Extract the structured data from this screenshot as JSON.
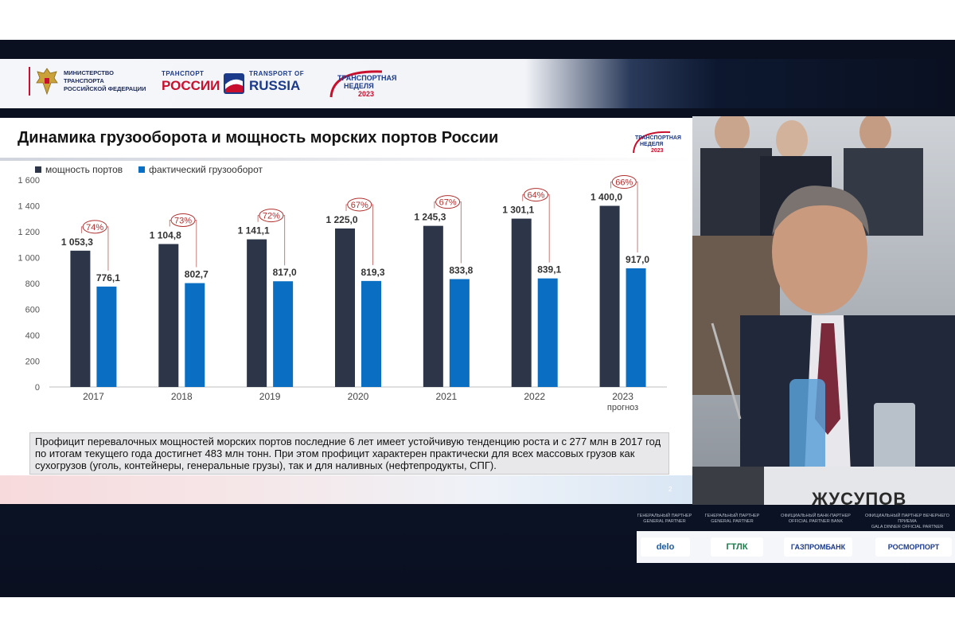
{
  "header": {
    "ministry_line1": "МИНИСТЕРСТВО ТРАНСПОРТА",
    "ministry_line2": "РОССИЙСКОЙ ФЕДЕРАЦИИ",
    "transport_top_ru": "ТРАНСПОРТ",
    "transport_big_ru": "РОССИИ",
    "transport_top_en": "TRANSPORT OF",
    "transport_big_en": "RUSSIA",
    "week_line1": "ТРАНСПОРТНАЯ",
    "week_line2": "НЕДЕЛЯ",
    "week_year": "2023"
  },
  "slide": {
    "title": "Динамика грузооборота и мощность морских портов России",
    "note": "Профицит перевалочных мощностей морских портов последние 6 лет имеет устойчивую тенденцию роста и с 277 млн в 2017 год по итогам текущего года достигнет 483 млн тонн. При этом профицит характерен практически для всех массовых грузов как сухогрузов (уголь, контейнеры, генеральные грузы), так и для наливных (нефтепродукты, СПГ).",
    "page_number": "2"
  },
  "chart_data": {
    "type": "bar",
    "categories": [
      "2017",
      "2018",
      "2019",
      "2020",
      "2021",
      "2022",
      "2023"
    ],
    "category_sublabels": [
      "",
      "",
      "",
      "",
      "",
      "",
      "прогноз"
    ],
    "series": [
      {
        "name": "мощность портов",
        "color": "#2d3648",
        "values": [
          1053.3,
          1104.8,
          1141.1,
          1225.0,
          1245.3,
          1301.1,
          1400.0
        ],
        "labels": [
          "1 053,3",
          "1 104,8",
          "1 141,1",
          "1 225,0",
          "1 245,3",
          "1 301,1",
          "1 400,0"
        ]
      },
      {
        "name": "фактический грузооборот",
        "color": "#0a6fc2",
        "values": [
          776.1,
          802.7,
          817.0,
          819.3,
          833.8,
          839.1,
          917.0
        ],
        "labels": [
          "776,1",
          "802,7",
          "817,0",
          "819,3",
          "833,8",
          "839,1",
          "917,0"
        ]
      }
    ],
    "utilization": [
      "74%",
      "73%",
      "72%",
      "67%",
      "67%",
      "64%",
      "66%"
    ],
    "y_ticks": [
      "0",
      "200",
      "400",
      "600",
      "800",
      "1 000",
      "1 200",
      "1 400",
      "1 600"
    ],
    "ylim": [
      0,
      1600
    ],
    "grid": false,
    "legend": "top-left"
  },
  "video": {
    "nameplate": "ЖУСУПОВ"
  },
  "partners": [
    {
      "role_ru": "ГЕНЕРАЛЬНЫЙ ПАРТНЕР",
      "role_en": "GENERAL PARTNER",
      "name": "delo"
    },
    {
      "role_ru": "ГЕНЕРАЛЬНЫЙ ПАРТНЕР",
      "role_en": "GENERAL PARTNER",
      "name": "ГТЛК"
    },
    {
      "role_ru": "ОФИЦИАЛЬНЫЙ БАНК-ПАРТНЕР",
      "role_en": "OFFICIAL PARTNER BANK",
      "name": "ГАЗПРОМБАНК"
    },
    {
      "role_ru": "ОФИЦИАЛЬНЫЙ ПАРТНЕР ВЕЧЕРНЕГО ПРИЕМА",
      "role_en": "GALA DINNER OFFICIAL PARTNER",
      "name": "РОСМОРПОРТ"
    }
  ],
  "colors": {
    "capacity": "#2d3648",
    "turnover": "#0a6fc2",
    "annotation": "#b03030"
  }
}
